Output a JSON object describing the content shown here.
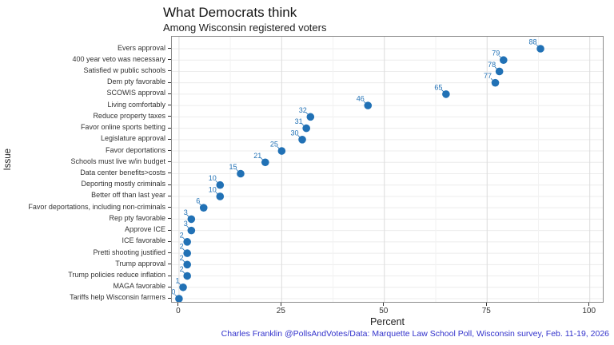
{
  "chart_data": {
    "type": "scatter",
    "title": "What Democrats think",
    "subtitle": "Among Wisconsin registered voters",
    "xlabel": "Percent",
    "ylabel": "Issue",
    "caption": "Charles Franklin @PollsAndVotes/Data: Marquette Law School Poll, Wisconsin survey, Feb. 11-19, 2026",
    "categories": [
      "Evers approval",
      "400 year veto was necessary",
      "Satisfied w public schools",
      "Dem pty favorable",
      "SCOWIS approval",
      "Living comfortably",
      "Reduce property taxes",
      "Favor online sports betting",
      "Legislature approval",
      "Favor deportations",
      "Schools must live w/in budget",
      "Data center benefits>costs",
      "Deporting mostly criminals",
      "Better off than last year",
      "Favor deportations, including non-criminals",
      "Rep pty favorable",
      "Approve ICE",
      "ICE favorable",
      "Pretti shooting justified",
      "Trump approval",
      "Trump policies reduce inflation",
      "MAGA favorable",
      "Tariffs help Wisconsin farmers"
    ],
    "values": [
      88,
      79,
      78,
      77,
      65,
      46,
      32,
      31,
      30,
      25,
      21,
      15,
      10,
      10,
      6,
      3,
      3,
      2,
      2,
      2,
      2,
      1,
      0
    ],
    "x_ticks": [
      0,
      25,
      50,
      75,
      100
    ],
    "x_minor_ticks": [
      12.5,
      37.5,
      62.5,
      87.5
    ],
    "xlim": [
      0,
      100
    ],
    "grid": true,
    "legend_position": "none",
    "point_color": "#2171b5",
    "value_label_color": "#2171b5",
    "caption_color": "#3333cc"
  }
}
